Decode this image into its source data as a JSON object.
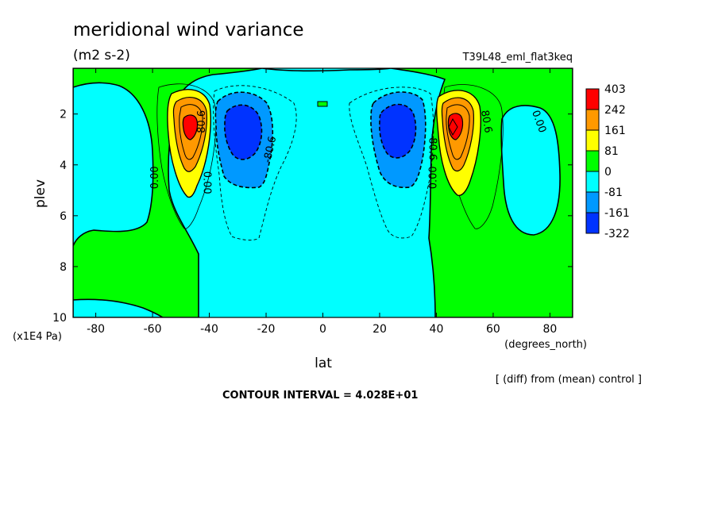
{
  "header": {
    "title": "meridional wind variance",
    "units": "(m2 s-2)",
    "run": "T39L48_eml_flat3keq"
  },
  "footer": {
    "diff_note": "[ (diff) from (mean) control ]",
    "contour_interval": "CONTOUR INTERVAL = 4.028E+01"
  },
  "chart_data": {
    "type": "contour",
    "xlabel": "lat",
    "xunits": "(degrees_north)",
    "ylabel": "plev",
    "yunits": "(x1E4 Pa)",
    "xlim": [
      -88,
      88
    ],
    "ylim": [
      0.2,
      10
    ],
    "y_inverted": true,
    "xticks": [
      -80,
      -60,
      -40,
      -20,
      0,
      20,
      40,
      60,
      80
    ],
    "yticks": [
      2,
      4,
      6,
      8,
      10
    ],
    "contour_interval": 40.28,
    "colorbar": {
      "labels": [
        "403",
        "242",
        "161",
        "81",
        "0",
        "-81",
        "-161",
        "-322"
      ],
      "colors": [
        "#ff0000",
        "#ff9900",
        "#ffff00",
        "#00ff00",
        "#00ffff",
        "#0099ff",
        "#0033ff"
      ]
    },
    "contour_labels": [
      {
        "text": "0.00",
        "lat": -59,
        "plev": 4.5,
        "angle": -90
      },
      {
        "text": "0.00",
        "lat": -41,
        "plev": 4.7,
        "angle": 90
      },
      {
        "text": "-80.6",
        "lat": -18.5,
        "plev": 3.4,
        "angle": -78
      },
      {
        "text": "80.6",
        "lat": -42.5,
        "plev": 2.3,
        "angle": -90
      },
      {
        "text": "-80.6",
        "lat": 38.5,
        "plev": 3.3,
        "angle": 90
      },
      {
        "text": "0.00",
        "lat": 39,
        "plev": 4.5,
        "angle": -90
      },
      {
        "text": "80.6",
        "lat": 57.5,
        "plev": 2.3,
        "angle": 80
      },
      {
        "text": "0.00",
        "lat": 76,
        "plev": 2.3,
        "angle": 70
      }
    ]
  }
}
